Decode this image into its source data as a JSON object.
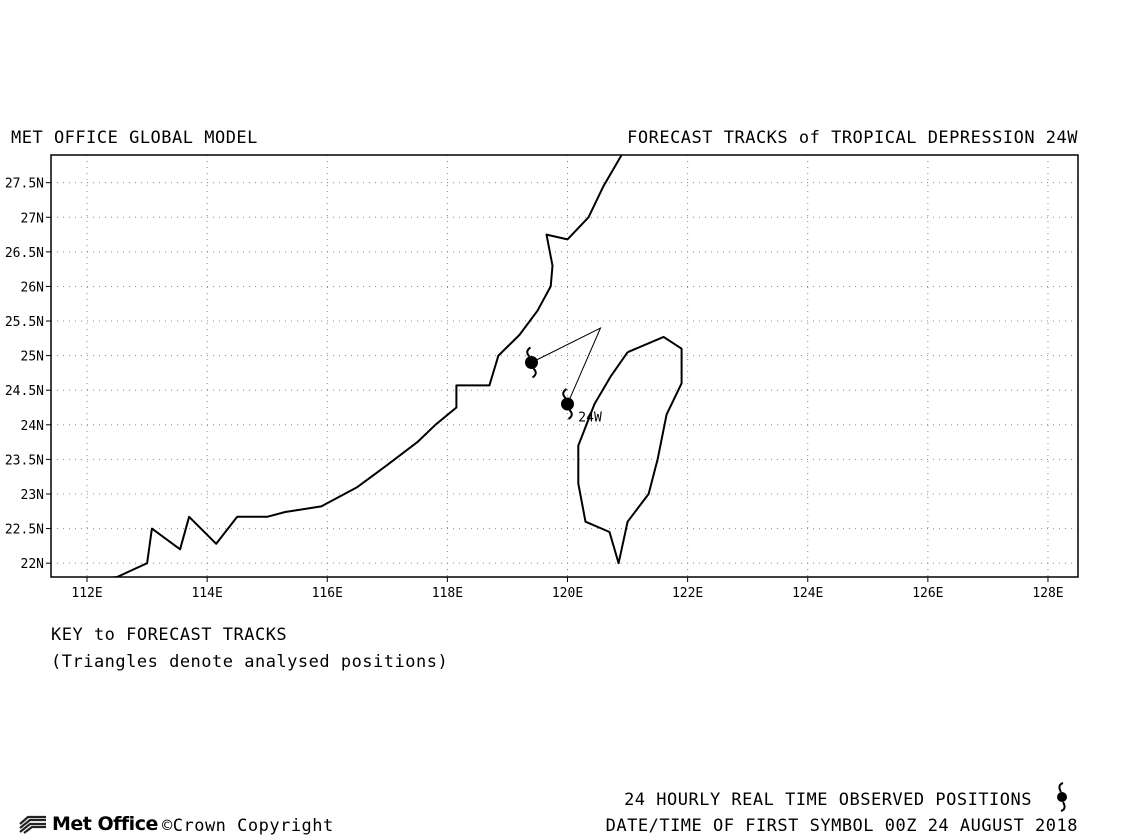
{
  "header": {
    "left_title": "MET OFFICE GLOBAL MODEL",
    "right_title": "FORECAST TRACKS of TROPICAL DEPRESSION 24W"
  },
  "map": {
    "lon_range": [
      111.4,
      128.5
    ],
    "lat_range": [
      21.8,
      27.9
    ],
    "lon_ticks": [
      {
        "value": 112,
        "label": "112E"
      },
      {
        "value": 114,
        "label": "114E"
      },
      {
        "value": 116,
        "label": "116E"
      },
      {
        "value": 118,
        "label": "118E"
      },
      {
        "value": 120,
        "label": "120E"
      },
      {
        "value": 122,
        "label": "122E"
      },
      {
        "value": 124,
        "label": "124E"
      },
      {
        "value": 126,
        "label": "126E"
      },
      {
        "value": 128,
        "label": "128E"
      }
    ],
    "lat_ticks": [
      {
        "value": 22,
        "label": "22N"
      },
      {
        "value": 22.5,
        "label": "22.5N"
      },
      {
        "value": 23,
        "label": "23N"
      },
      {
        "value": 23.5,
        "label": "23.5N"
      },
      {
        "value": 24,
        "label": "24N"
      },
      {
        "value": 24.5,
        "label": "24.5N"
      },
      {
        "value": 25,
        "label": "25N"
      },
      {
        "value": 25.5,
        "label": "25.5N"
      },
      {
        "value": 26,
        "label": "26N"
      },
      {
        "value": 26.5,
        "label": "26.5N"
      },
      {
        "value": 27,
        "label": "27N"
      },
      {
        "value": 27.5,
        "label": "27.5N"
      }
    ],
    "grid": "dotted",
    "coastline_mainland": [
      [
        111.9,
        21.75
      ],
      [
        112.5,
        21.8
      ],
      [
        113.0,
        22.0
      ],
      [
        113.08,
        22.5
      ],
      [
        113.55,
        22.2
      ],
      [
        113.7,
        22.67
      ],
      [
        114.15,
        22.28
      ],
      [
        114.5,
        22.67
      ],
      [
        115.0,
        22.67
      ],
      [
        115.3,
        22.74
      ],
      [
        115.9,
        22.82
      ],
      [
        116.5,
        23.1
      ],
      [
        117.0,
        23.42
      ],
      [
        117.5,
        23.75
      ],
      [
        117.8,
        24.0
      ],
      [
        118.15,
        24.25
      ],
      [
        118.15,
        24.57
      ],
      [
        118.7,
        24.57
      ],
      [
        118.85,
        25.0
      ],
      [
        119.2,
        25.3
      ],
      [
        119.5,
        25.65
      ],
      [
        119.72,
        26.0
      ],
      [
        119.75,
        26.3
      ],
      [
        119.65,
        26.75
      ],
      [
        120.0,
        26.68
      ],
      [
        120.35,
        27.0
      ],
      [
        120.6,
        27.45
      ],
      [
        120.9,
        27.9
      ]
    ],
    "coastline_taiwan": [
      [
        121.0,
        25.05
      ],
      [
        121.6,
        25.27
      ],
      [
        121.9,
        25.1
      ],
      [
        121.9,
        24.6
      ],
      [
        121.65,
        24.15
      ],
      [
        121.5,
        23.5
      ],
      [
        121.35,
        23.0
      ],
      [
        121.0,
        22.6
      ],
      [
        120.85,
        22.0
      ],
      [
        120.7,
        22.45
      ],
      [
        120.3,
        22.6
      ],
      [
        120.18,
        23.15
      ],
      [
        120.18,
        23.7
      ],
      [
        120.45,
        24.3
      ],
      [
        120.72,
        24.7
      ],
      [
        121.0,
        25.05
      ]
    ],
    "forecast_track": [
      [
        119.4,
        24.9
      ],
      [
        120.55,
        25.4
      ],
      [
        120.0,
        24.3
      ]
    ],
    "storm_symbols": [
      {
        "lon": 119.4,
        "lat": 24.9
      },
      {
        "lon": 120.0,
        "lat": 24.3
      }
    ],
    "storm_label": {
      "text": "24W",
      "lon": 120.18,
      "lat": 24.05
    }
  },
  "key": {
    "title": "KEY to FORECAST TRACKS",
    "note": "(Triangles denote analysed positions)"
  },
  "footer": {
    "observed_label": "24 HOURLY REAL TIME OBSERVED POSITIONS",
    "date_label": "DATE/TIME OF FIRST SYMBOL 00Z 24 AUGUST 2018",
    "logo_text": "Met Office",
    "copyright": "©Crown Copyright"
  }
}
